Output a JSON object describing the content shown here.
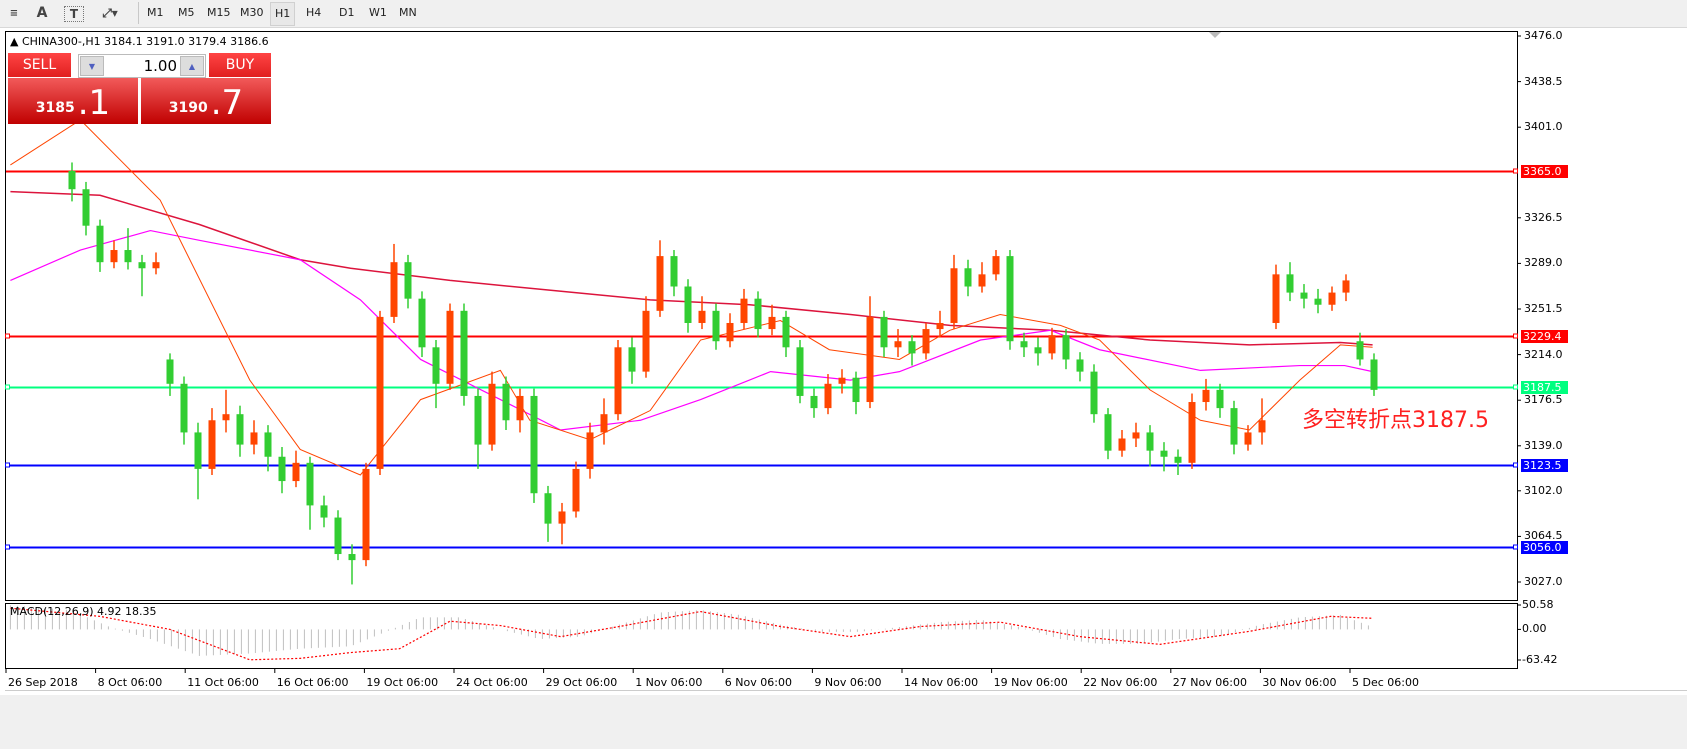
{
  "toolbar": {
    "icons": [
      "hline-icon",
      "text-a-icon",
      "text-box-icon",
      "arrows-icon"
    ],
    "timeframes": [
      "M1",
      "M5",
      "M15",
      "M30",
      "H1",
      "H4",
      "D1",
      "W1",
      "MN"
    ],
    "active_timeframe": "H1"
  },
  "symbol_info": "CHINA300-,H1  3184.1 3191.0 3179.4 3186.6",
  "trade_panel": {
    "sell_label": "SELL",
    "buy_label": "BUY",
    "lot": "1.00",
    "sell_big": "3185",
    "sell_small": ".1",
    "buy_big": "3190",
    "buy_small": ".7"
  },
  "colors": {
    "bull": "#ff4500",
    "bear": "#32cd32",
    "ma_fast": "#ff4500",
    "ma_mid": "#ff00ff",
    "ma_slow": "#dc143c",
    "macd_hist": "#c0c0c0",
    "macd_signal": "#ff0000"
  },
  "annotation": "多空转折点3187.5",
  "price_axis": [
    "3476.0",
    "3438.5",
    "3401.0",
    "3326.5",
    "3289.0",
    "3251.5",
    "3214.0",
    "3176.5",
    "3139.0",
    "3102.0",
    "3064.5",
    "3027.0"
  ],
  "levels": [
    {
      "price": 3365.0,
      "label": "3365.0",
      "color": "#ff0000"
    },
    {
      "price": 3229.4,
      "label": "3229.4",
      "color": "#ff0000"
    },
    {
      "price": 3187.5,
      "label": "3187.5",
      "color": "#00ff7f"
    },
    {
      "price": 3123.5,
      "label": "3123.5",
      "color": "#0000ff"
    },
    {
      "price": 3056.0,
      "label": "3056.0",
      "color": "#0000ff"
    }
  ],
  "macd": {
    "label": "MACD(12,26,9) 4.92 18.35",
    "axis": [
      "50.58",
      "0.00",
      "-63.42"
    ]
  },
  "time_axis": [
    "26 Sep 2018",
    "8 Oct 06:00",
    "11 Oct 06:00",
    "16 Oct 06:00",
    "19 Oct 06:00",
    "24 Oct 06:00",
    "29 Oct 06:00",
    "1 Nov 06:00",
    "6 Nov 06:00",
    "9 Nov 06:00",
    "14 Nov 06:00",
    "19 Nov 06:00",
    "22 Nov 06:00",
    "27 Nov 06:00",
    "30 Nov 06:00",
    "5 Dec 06:00"
  ],
  "chart_data": {
    "type": "candlestick",
    "ylim": [
      3027,
      3476
    ],
    "candles": [
      [
        3365,
        3372,
        3340,
        3350
      ],
      [
        3350,
        3356,
        3312,
        3320
      ],
      [
        3320,
        3325,
        3282,
        3290
      ],
      [
        3290,
        3308,
        3285,
        3300
      ],
      [
        3300,
        3318,
        3284,
        3290
      ],
      [
        3290,
        3296,
        3262,
        3285
      ],
      [
        3285,
        3298,
        3280,
        3290
      ],
      [
        3210,
        3215,
        3180,
        3190
      ],
      [
        3190,
        3196,
        3140,
        3150
      ],
      [
        3150,
        3158,
        3095,
        3120
      ],
      [
        3120,
        3170,
        3115,
        3160
      ],
      [
        3160,
        3185,
        3150,
        3165
      ],
      [
        3165,
        3172,
        3130,
        3140
      ],
      [
        3140,
        3160,
        3132,
        3150
      ],
      [
        3150,
        3156,
        3118,
        3130
      ],
      [
        3130,
        3138,
        3100,
        3110
      ],
      [
        3110,
        3135,
        3105,
        3125
      ],
      [
        3125,
        3130,
        3070,
        3090
      ],
      [
        3090,
        3098,
        3072,
        3080
      ],
      [
        3080,
        3086,
        3045,
        3050
      ],
      [
        3050,
        3058,
        3025,
        3045
      ],
      [
        3045,
        3125,
        3040,
        3120
      ],
      [
        3120,
        3250,
        3115,
        3245
      ],
      [
        3245,
        3305,
        3240,
        3290
      ],
      [
        3290,
        3296,
        3252,
        3260
      ],
      [
        3260,
        3266,
        3212,
        3220
      ],
      [
        3220,
        3226,
        3170,
        3190
      ],
      [
        3190,
        3256,
        3185,
        3250
      ],
      [
        3250,
        3256,
        3172,
        3180
      ],
      [
        3180,
        3186,
        3120,
        3140
      ],
      [
        3140,
        3200,
        3135,
        3190
      ],
      [
        3190,
        3196,
        3152,
        3160
      ],
      [
        3160,
        3186,
        3150,
        3180
      ],
      [
        3180,
        3186,
        3092,
        3100
      ],
      [
        3100,
        3106,
        3060,
        3075
      ],
      [
        3075,
        3092,
        3058,
        3085
      ],
      [
        3085,
        3126,
        3080,
        3120
      ],
      [
        3120,
        3158,
        3112,
        3150
      ],
      [
        3150,
        3178,
        3140,
        3165
      ],
      [
        3165,
        3226,
        3160,
        3220
      ],
      [
        3220,
        3228,
        3190,
        3200
      ],
      [
        3200,
        3262,
        3195,
        3250
      ],
      [
        3250,
        3308,
        3245,
        3295
      ],
      [
        3295,
        3300,
        3262,
        3270
      ],
      [
        3270,
        3276,
        3232,
        3240
      ],
      [
        3240,
        3262,
        3235,
        3250
      ],
      [
        3250,
        3256,
        3218,
        3225
      ],
      [
        3225,
        3248,
        3220,
        3240
      ],
      [
        3240,
        3268,
        3235,
        3260
      ],
      [
        3260,
        3266,
        3228,
        3235
      ],
      [
        3235,
        3255,
        3230,
        3245
      ],
      [
        3245,
        3250,
        3212,
        3220
      ],
      [
        3220,
        3226,
        3174,
        3180
      ],
      [
        3180,
        3186,
        3162,
        3170
      ],
      [
        3170,
        3198,
        3165,
        3190
      ],
      [
        3190,
        3202,
        3182,
        3195
      ],
      [
        3195,
        3200,
        3165,
        3175
      ],
      [
        3175,
        3262,
        3170,
        3245
      ],
      [
        3245,
        3250,
        3212,
        3220
      ],
      [
        3220,
        3235,
        3212,
        3225
      ],
      [
        3225,
        3230,
        3205,
        3215
      ],
      [
        3215,
        3240,
        3210,
        3235
      ],
      [
        3235,
        3250,
        3228,
        3240
      ],
      [
        3240,
        3296,
        3235,
        3285
      ],
      [
        3285,
        3292,
        3262,
        3270
      ],
      [
        3270,
        3290,
        3265,
        3280
      ],
      [
        3280,
        3300,
        3275,
        3295
      ],
      [
        3295,
        3300,
        3218,
        3225
      ],
      [
        3225,
        3232,
        3212,
        3220
      ],
      [
        3220,
        3228,
        3205,
        3215
      ],
      [
        3215,
        3236,
        3210,
        3230
      ],
      [
        3230,
        3235,
        3202,
        3210
      ],
      [
        3210,
        3216,
        3192,
        3200
      ],
      [
        3200,
        3206,
        3158,
        3165
      ],
      [
        3165,
        3170,
        3128,
        3135
      ],
      [
        3135,
        3152,
        3130,
        3145
      ],
      [
        3145,
        3158,
        3138,
        3150
      ],
      [
        3150,
        3156,
        3122,
        3135
      ],
      [
        3135,
        3142,
        3118,
        3130
      ],
      [
        3130,
        3136,
        3115,
        3125
      ],
      [
        3125,
        3182,
        3120,
        3175
      ],
      [
        3175,
        3194,
        3168,
        3185
      ],
      [
        3185,
        3190,
        3162,
        3170
      ],
      [
        3170,
        3176,
        3132,
        3140
      ],
      [
        3140,
        3156,
        3135,
        3150
      ],
      [
        3150,
        3178,
        3140,
        3160
      ],
      [
        3240,
        3288,
        3235,
        3280
      ],
      [
        3280,
        3290,
        3258,
        3265
      ],
      [
        3265,
        3272,
        3252,
        3260
      ],
      [
        3260,
        3268,
        3248,
        3255
      ],
      [
        3255,
        3270,
        3250,
        3265
      ],
      [
        3265,
        3280,
        3258,
        3275
      ],
      [
        3225,
        3232,
        3205,
        3210
      ],
      [
        3210,
        3215,
        3180,
        3185
      ]
    ],
    "ma_fast": [
      [
        -4.4,
        3370
      ],
      [
        0.6,
        3407
      ],
      [
        6.3,
        3341
      ],
      [
        12.7,
        3193
      ],
      [
        16.3,
        3136
      ],
      [
        20.6,
        3115
      ],
      [
        24.9,
        3177
      ],
      [
        30.6,
        3201
      ],
      [
        32.7,
        3160
      ],
      [
        37,
        3144
      ],
      [
        41.3,
        3168
      ],
      [
        44.9,
        3226
      ],
      [
        50.6,
        3242
      ],
      [
        54.1,
        3218
      ],
      [
        59.1,
        3210
      ],
      [
        62.7,
        3234
      ],
      [
        66.3,
        3247
      ],
      [
        70.6,
        3238
      ],
      [
        73.4,
        3226
      ],
      [
        77,
        3185
      ],
      [
        80.6,
        3160
      ],
      [
        84.1,
        3152
      ],
      [
        87.7,
        3193
      ],
      [
        90.6,
        3222
      ],
      [
        92.9,
        3220
      ]
    ],
    "ma_mid": [
      [
        -4.4,
        3275
      ],
      [
        0.6,
        3300
      ],
      [
        5.6,
        3316
      ],
      [
        9.1,
        3308
      ],
      [
        16.3,
        3292
      ],
      [
        20.6,
        3259
      ],
      [
        24.9,
        3210
      ],
      [
        30.6,
        3177
      ],
      [
        34.9,
        3152
      ],
      [
        40.6,
        3160
      ],
      [
        44.9,
        3177
      ],
      [
        49.9,
        3200
      ],
      [
        55.6,
        3193
      ],
      [
        59.1,
        3200
      ],
      [
        64.9,
        3226
      ],
      [
        69.9,
        3234
      ],
      [
        73.4,
        3218
      ],
      [
        80.6,
        3201
      ],
      [
        87.7,
        3205
      ],
      [
        90.9,
        3205
      ],
      [
        92.9,
        3200
      ]
    ],
    "ma_slow": [
      [
        -4.4,
        3348
      ],
      [
        2,
        3345
      ],
      [
        9.1,
        3321
      ],
      [
        16.3,
        3292
      ],
      [
        19.9,
        3285
      ],
      [
        27,
        3275
      ],
      [
        34.1,
        3267
      ],
      [
        41.3,
        3259
      ],
      [
        48.4,
        3255
      ],
      [
        55.6,
        3247
      ],
      [
        62.7,
        3238
      ],
      [
        69.9,
        3234
      ],
      [
        77,
        3226
      ],
      [
        84.1,
        3222
      ],
      [
        90.6,
        3224
      ],
      [
        92.9,
        3222
      ]
    ],
    "macd_ylim": [
      -63.42,
      50.58
    ],
    "macd_signal": [
      [
        -4.4,
        44
      ],
      [
        2,
        27
      ],
      [
        7,
        0
      ],
      [
        12.7,
        -63
      ],
      [
        16.3,
        -60
      ],
      [
        19.9,
        -48
      ],
      [
        23.4,
        -40
      ],
      [
        27,
        17
      ],
      [
        30.6,
        8
      ],
      [
        34.9,
        -15
      ],
      [
        39.1,
        6
      ],
      [
        44.9,
        37
      ],
      [
        50.6,
        6
      ],
      [
        55.6,
        -15
      ],
      [
        60.6,
        6
      ],
      [
        66.3,
        15
      ],
      [
        72,
        -15
      ],
      [
        77.7,
        -31
      ],
      [
        84.1,
        -4
      ],
      [
        89.9,
        27
      ],
      [
        92.9,
        23
      ]
    ],
    "macd_hist": [
      [
        -4.4,
        50
      ],
      [
        -0.1,
        40
      ],
      [
        2.7,
        5
      ],
      [
        5.6,
        -20
      ],
      [
        9.1,
        -55
      ],
      [
        12.7,
        -50
      ],
      [
        16.3,
        -40
      ],
      [
        19.9,
        -35
      ],
      [
        22,
        -10
      ],
      [
        24.9,
        25
      ],
      [
        27.7,
        25
      ],
      [
        30.6,
        0
      ],
      [
        33.4,
        -20
      ],
      [
        36.3,
        -15
      ],
      [
        39.1,
        10
      ],
      [
        42,
        35
      ],
      [
        44.9,
        40
      ],
      [
        47.7,
        30
      ],
      [
        50.6,
        10
      ],
      [
        53.4,
        -5
      ],
      [
        56.3,
        -5
      ],
      [
        59.1,
        5
      ],
      [
        62,
        15
      ],
      [
        64.9,
        20
      ],
      [
        67.7,
        5
      ],
      [
        70.6,
        -20
      ],
      [
        73.4,
        -30
      ],
      [
        76.3,
        -30
      ],
      [
        79.1,
        -20
      ],
      [
        82,
        -15
      ],
      [
        84.9,
        10
      ],
      [
        87.7,
        25
      ],
      [
        90.6,
        30
      ],
      [
        92.9,
        5
      ]
    ]
  }
}
